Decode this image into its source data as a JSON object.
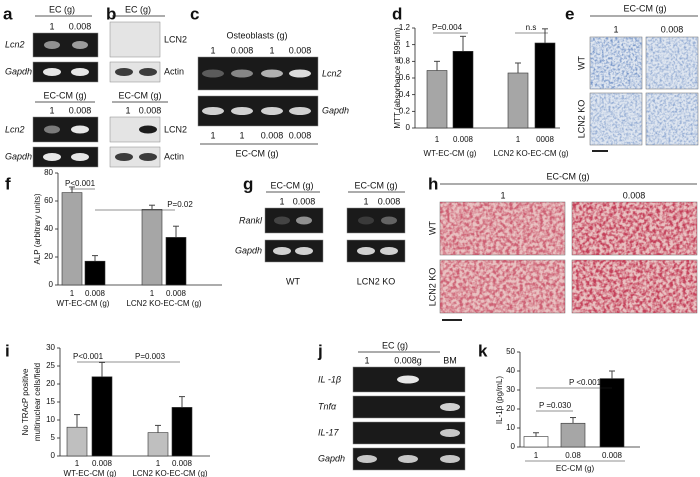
{
  "panel_labels": [
    "a",
    "b",
    "c",
    "d",
    "e",
    "f",
    "g",
    "h",
    "i",
    "j",
    "k"
  ],
  "gels": {
    "a": {
      "top_header": "EC (g)",
      "top_lanes": [
        "1",
        "0.008"
      ],
      "top_rows": [
        "Lcn2",
        "Gapdh"
      ],
      "bottom_header": "EC-CM (g)",
      "bottom_lanes": [
        "1",
        "0.008"
      ],
      "bottom_rows": [
        "Lcn2",
        "Gapdh"
      ]
    },
    "b": {
      "top_header": "EC (g)",
      "top_rows": [
        "LCN2",
        "Actin"
      ],
      "bottom_header": "EC-CM (g)",
      "bottom_lanes": [
        "1",
        "0.008"
      ],
      "bottom_rows": [
        "LCN2",
        "Actin"
      ]
    },
    "c": {
      "header": "Osteoblasts (g)",
      "top_lanes": [
        "1",
        "0.008",
        "1",
        "0.008"
      ],
      "rows": [
        "Lcn2",
        "Gapdh"
      ],
      "bottom_lanes": [
        "1",
        "1",
        "0.008",
        "0.008"
      ],
      "footer": "EC-CM (g)"
    },
    "e": {
      "header": "EC-CM (g)",
      "columns": [
        "1",
        "0.008"
      ],
      "rows": [
        "WT",
        "LCN2 KO"
      ]
    },
    "g": {
      "groups": [
        {
          "header": "EC-CM (g)",
          "lanes": [
            "1",
            "0.008"
          ],
          "footer": "WT"
        },
        {
          "header": "EC-CM (g)",
          "lanes": [
            "1",
            "0.008"
          ],
          "footer": "LCN2 KO"
        }
      ],
      "rows": [
        "Rankl",
        "Gapdh"
      ]
    },
    "h": {
      "header": "EC-CM (g)",
      "columns": [
        "1",
        "0.008"
      ],
      "rows": [
        "WT",
        "LCN2 KO"
      ]
    },
    "j": {
      "header": "EC (g)",
      "lanes": [
        "1",
        "0.008g",
        "BM"
      ],
      "rows": [
        "IL -1β",
        "Tnfα",
        "IL-17",
        "Gapdh"
      ]
    }
  },
  "chart_data": [
    {
      "type": "bar",
      "ylabel": "MTT (absorbance at 595nm)",
      "categories": [
        "1",
        "0.008",
        "1",
        "0008"
      ],
      "values": [
        0.69,
        0.92,
        0.66,
        1.02
      ],
      "errors": [
        0.11,
        0.18,
        0.12,
        0.17
      ],
      "colors": [
        "#a6a6a6",
        "#000000",
        "#a6a6a6",
        "#000000"
      ],
      "groups": [
        "WT-EC-CM (g)",
        "LCN2 KO-EC-CM (g)"
      ],
      "annotations": [
        "P=0.004",
        "n.s"
      ],
      "ylim": [
        0,
        1.2
      ],
      "yticks": [
        0,
        0.2,
        0.4,
        0.6,
        0.8,
        1,
        1.2
      ]
    },
    {
      "type": "bar",
      "ylabel": "ALP (arbitrary units)",
      "categories": [
        "1",
        "0.008",
        "1",
        "0.008"
      ],
      "values": [
        66,
        17,
        54,
        34
      ],
      "errors": [
        4,
        4,
        3,
        8
      ],
      "colors": [
        "#a6a6a6",
        "#000000",
        "#a6a6a6",
        "#000000"
      ],
      "groups": [
        "WT-EC-CM (g)",
        "LCN2 KO-EC-CM (g)"
      ],
      "annotations": [
        "P<0.001",
        "P=0.02"
      ],
      "ylim": [
        0,
        80
      ],
      "yticks": [
        0,
        20,
        40,
        60,
        80
      ]
    },
    {
      "type": "bar",
      "ylabel": [
        "No TRAcP positive",
        "multinuclear cells/field"
      ],
      "categories": [
        "1",
        "0.008",
        "1",
        "0.008"
      ],
      "values": [
        8,
        22,
        6.5,
        13.5
      ],
      "errors": [
        3.5,
        4,
        2,
        3
      ],
      "colors": [
        "#bfbfbf",
        "#000000",
        "#bfbfbf",
        "#000000"
      ],
      "groups": [
        "WT-EC-CM (g)",
        "LCN2 KO-EC-CM (g)"
      ],
      "annotations": [
        "P<0.001",
        "P=0.003"
      ],
      "ylim": [
        0,
        30
      ],
      "yticks": [
        0,
        5,
        10,
        15,
        20,
        25,
        30
      ]
    },
    {
      "type": "bar",
      "ylabel": "IL-1β (pg/mL)",
      "categories": [
        "1",
        "0.08",
        "0.008"
      ],
      "values": [
        5.5,
        12.5,
        36
      ],
      "errors": [
        2,
        3,
        4
      ],
      "colors": [
        "#ffffff",
        "#a6a6a6",
        "#000000"
      ],
      "groups": [
        "EC-CM (g)"
      ],
      "annotations": [
        "P =0.030",
        "P <0.001"
      ],
      "ylim": [
        0,
        50
      ],
      "yticks": [
        0,
        10,
        20,
        30,
        40,
        50
      ]
    }
  ]
}
